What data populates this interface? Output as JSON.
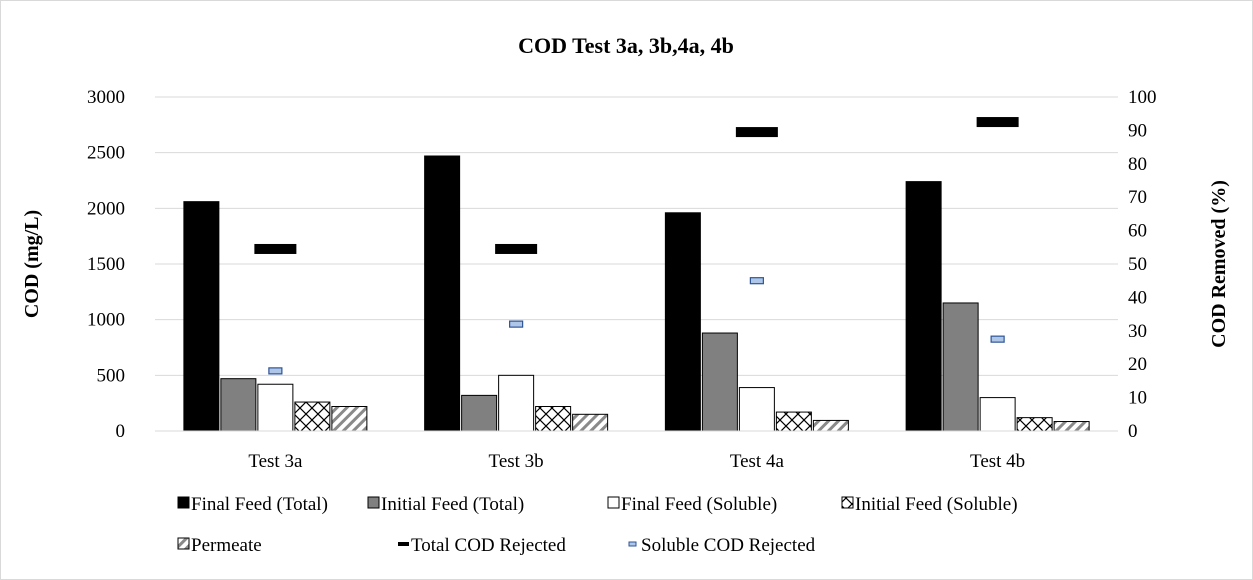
{
  "chart_data": {
    "type": "bar",
    "title": "COD Test 3a, 3b,4a, 4b",
    "ylabel": "COD (mg/L)",
    "y2label": "COD Removed (%)",
    "ylim": [
      0,
      3000
    ],
    "yticks": [
      0,
      500,
      1000,
      1500,
      2000,
      2500,
      3000
    ],
    "y2lim": [
      0,
      100
    ],
    "y2ticks": [
      0,
      10,
      20,
      30,
      40,
      50,
      60,
      70,
      80,
      90,
      100
    ],
    "grid": true,
    "legend_position": "bottom",
    "categories": [
      "Test 3a",
      "Test 3b",
      "Test 4a",
      "Test 4b"
    ],
    "series": [
      {
        "name": "Final Feed (Total)",
        "kind": "bar",
        "axis": "left",
        "style": "solid-black",
        "values": [
          2060,
          2470,
          1960,
          2240
        ]
      },
      {
        "name": "Initial Feed (Total)",
        "kind": "bar",
        "axis": "left",
        "style": "solid-gray",
        "values": [
          470,
          320,
          880,
          1150
        ]
      },
      {
        "name": "Final Feed (Soluble)",
        "kind": "bar",
        "axis": "left",
        "style": "white",
        "values": [
          420,
          500,
          390,
          300
        ]
      },
      {
        "name": "Initial Feed (Soluble)",
        "kind": "bar",
        "axis": "left",
        "style": "crosshatch",
        "values": [
          260,
          220,
          170,
          120
        ]
      },
      {
        "name": "Permeate",
        "kind": "bar",
        "axis": "left",
        "style": "diagonal",
        "values": [
          220,
          150,
          95,
          85
        ]
      },
      {
        "name": "Total COD Rejected",
        "kind": "marker",
        "axis": "right",
        "style": "black-dash",
        "values": [
          54.5,
          54.5,
          89.5,
          92.5
        ]
      },
      {
        "name": "Soluble COD Rejected",
        "kind": "marker",
        "axis": "right",
        "style": "blue-dash",
        "values": [
          18,
          32,
          45,
          27.5
        ]
      }
    ]
  }
}
